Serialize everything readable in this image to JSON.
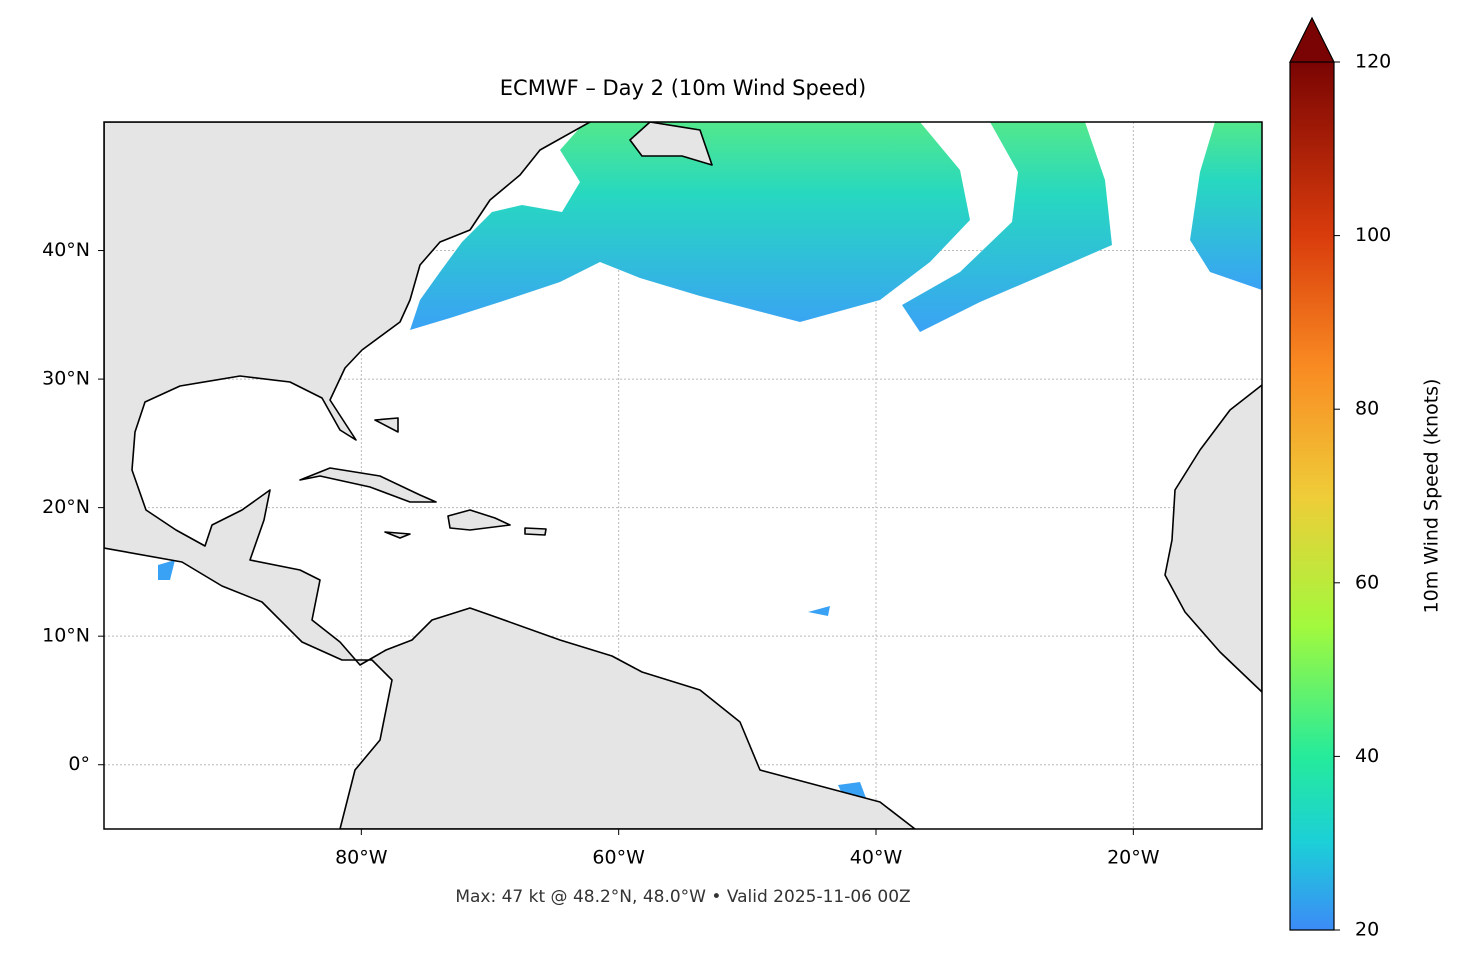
{
  "chart_data": {
    "type": "map",
    "title": "ECMWF – Day 2 (10m Wind Speed)",
    "footer": "Max: 47 kt @ 48.2°N, 48.0°W • Valid 2025-11-06 00Z",
    "xlim": [
      -100,
      -10
    ],
    "ylim": [
      -5,
      50
    ],
    "xticks": [
      {
        "value": -80,
        "label": "80°W"
      },
      {
        "value": -60,
        "label": "60°W"
      },
      {
        "value": -40,
        "label": "40°W"
      },
      {
        "value": -20,
        "label": "20°W"
      }
    ],
    "yticks": [
      {
        "value": 0,
        "label": "0°"
      },
      {
        "value": 10,
        "label": "10°N"
      },
      {
        "value": 20,
        "label": "20°N"
      },
      {
        "value": 30,
        "label": "30°N"
      },
      {
        "value": 40,
        "label": "40°N"
      }
    ],
    "grid": true,
    "colorbar": {
      "label": "10m Wind Speed (knots)",
      "lim": [
        20,
        120
      ],
      "ticks": [
        20,
        40,
        60,
        80,
        100,
        120
      ],
      "extend": "max"
    }
  }
}
